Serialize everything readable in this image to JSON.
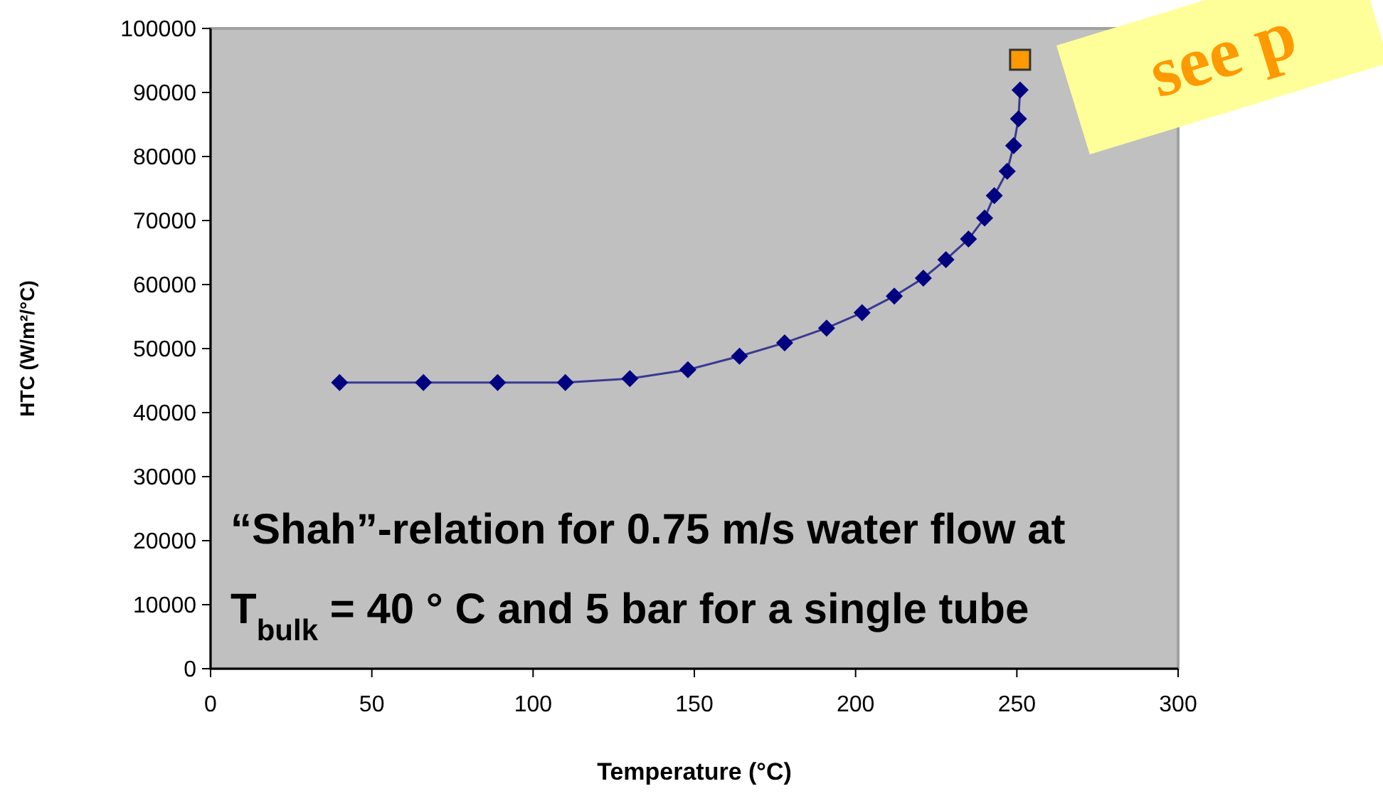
{
  "chart_data": {
    "type": "line",
    "xlabel": "Temperature (°C)",
    "ylabel": "HTC (W/m²/°C)",
    "xlim": [
      0,
      300
    ],
    "ylim": [
      0,
      100000
    ],
    "xticks": [
      0,
      50,
      100,
      150,
      200,
      250,
      300
    ],
    "yticks": [
      0,
      10000,
      20000,
      30000,
      40000,
      50000,
      60000,
      70000,
      80000,
      90000,
      100000
    ],
    "grid": false,
    "annotations": [
      "“Shah”-relation for 0.75 m/s water flow at",
      "T$_{bulk}$ = 40 ° C and 5 bar for a single tube",
      "see p"
    ],
    "series": [
      {
        "color": "#000080",
        "marker": "diamond",
        "x": [
          40,
          66,
          89,
          110,
          130,
          148,
          164,
          178,
          191,
          202,
          212,
          221,
          228,
          235,
          240,
          243,
          247,
          249,
          250.5,
          251
        ],
        "values": [
          44700,
          44700,
          44700,
          44700,
          45300,
          46700,
          48800,
          50900,
          53200,
          55600,
          58200,
          61000,
          63900,
          67100,
          70400,
          73900,
          77700,
          81700,
          85900,
          90400
        ]
      },
      {
        "type": "scatter",
        "color": "#ff9900",
        "marker": "square",
        "x": [
          251
        ],
        "values": [
          95100
        ]
      }
    ]
  }
}
